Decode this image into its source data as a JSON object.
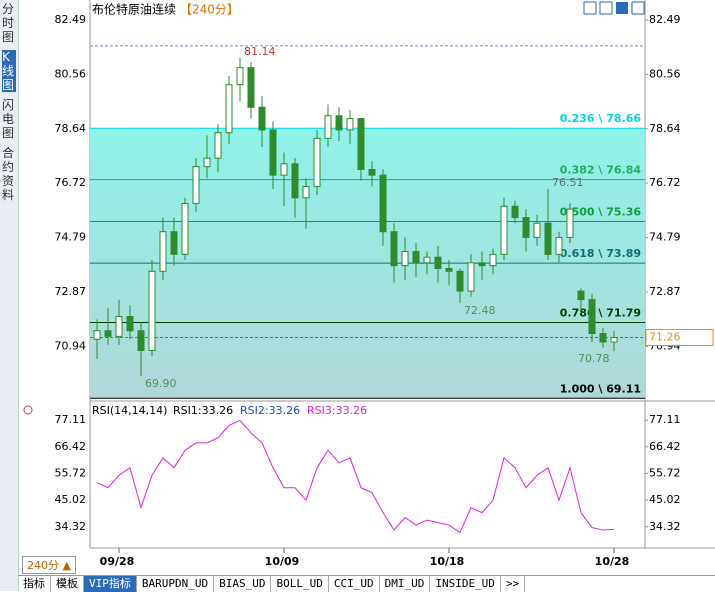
{
  "sidebar_tabs": [
    "分时图",
    "K线图",
    "闪电图",
    "合约资料"
  ],
  "chart_data": {
    "type": "candlestick",
    "title": "布伦特原油连续",
    "period": "【240分】",
    "ylim": [
      69.05,
      82.91
    ],
    "yticks": [
      82.49,
      80.56,
      78.64,
      76.72,
      74.79,
      72.87,
      70.94
    ],
    "categories": [
      null,
      null,
      "09/28",
      null,
      null,
      null,
      null,
      null,
      null,
      null,
      null,
      null,
      null,
      null,
      null,
      null,
      null,
      "10/09",
      null,
      null,
      null,
      null,
      null,
      null,
      null,
      null,
      null,
      null,
      null,
      null,
      null,
      null,
      "10/18",
      null,
      null,
      null,
      null,
      null,
      null,
      null,
      null,
      null,
      null,
      null,
      null,
      null,
      null,
      "10/28"
    ],
    "candles": {
      "open": [
        71.2,
        71.5,
        71.3,
        72.0,
        71.5,
        70.8,
        73.6,
        75.0,
        74.2,
        76.0,
        77.3,
        77.6,
        78.5,
        80.2,
        80.8,
        79.4,
        78.6,
        77.0,
        77.4,
        76.2,
        76.6,
        78.3,
        79.1,
        78.6,
        79.0,
        77.2,
        77.0,
        75.0,
        73.8,
        74.3,
        73.9,
        74.1,
        73.7,
        73.6,
        72.9,
        73.9,
        73.8,
        74.2,
        75.9,
        75.5,
        74.8,
        75.3,
        74.2,
        74.8,
        72.9,
        72.6,
        71.4,
        71.1
      ],
      "high": [
        71.9,
        72.3,
        72.6,
        72.4,
        71.8,
        74.0,
        75.5,
        75.5,
        76.2,
        77.6,
        78.4,
        78.8,
        80.5,
        81.14,
        81.0,
        79.8,
        78.9,
        77.8,
        77.6,
        76.9,
        78.6,
        79.5,
        79.4,
        79.3,
        79.0,
        77.5,
        77.2,
        75.3,
        74.8,
        74.6,
        74.3,
        74.5,
        74.0,
        73.7,
        74.2,
        74.3,
        74.4,
        76.2,
        76.1,
        75.8,
        75.6,
        76.51,
        75.0,
        76.0,
        73.0,
        72.8,
        71.6,
        71.5
      ],
      "low": [
        70.5,
        71.0,
        71.0,
        71.2,
        69.9,
        70.6,
        73.3,
        73.8,
        74.0,
        75.7,
        76.9,
        77.1,
        78.1,
        79.6,
        79.0,
        78.0,
        76.5,
        75.9,
        75.5,
        75.1,
        76.3,
        78.0,
        78.2,
        78.1,
        76.8,
        76.6,
        74.5,
        73.2,
        73.3,
        73.4,
        73.5,
        73.2,
        73.1,
        72.48,
        72.7,
        73.3,
        73.5,
        74.0,
        75.3,
        74.3,
        74.5,
        74.0,
        73.9,
        74.6,
        72.2,
        71.1,
        70.9,
        70.78
      ],
      "close": [
        71.5,
        71.3,
        72.0,
        71.5,
        70.8,
        73.6,
        75.0,
        74.2,
        76.0,
        77.3,
        77.6,
        78.5,
        80.2,
        80.8,
        79.4,
        78.6,
        77.0,
        77.4,
        76.2,
        76.6,
        78.3,
        79.1,
        78.6,
        79.0,
        77.2,
        77.0,
        75.0,
        73.8,
        74.3,
        73.9,
        74.1,
        73.7,
        73.6,
        72.9,
        73.9,
        73.8,
        74.2,
        75.9,
        75.5,
        74.8,
        75.3,
        74.2,
        74.8,
        75.8,
        72.6,
        71.4,
        71.1,
        71.26
      ]
    },
    "up_color": "#2e8b2e",
    "down_color": "#2e8b2e",
    "high_labels": [
      81.14,
      76.51
    ],
    "low_labels": [
      {
        "value": 69.9,
        "label": "69.90"
      },
      72.48,
      70.78
    ],
    "fib_levels": [
      {
        "value": 78.66,
        "label": "0.236 \\ 78.66",
        "color": "#00d8e0"
      },
      {
        "value": 76.84,
        "label": "0.382 \\ 76.84",
        "color": "#20b060"
      },
      {
        "value": 75.36,
        "label": "0.500 \\ 75.36",
        "color": "#10a040"
      },
      {
        "value": 73.89,
        "label": "0.618 \\ 73.89",
        "color": "#107070"
      },
      {
        "value": 71.79,
        "label": "0.786 \\ 71.79",
        "color": "#004000"
      },
      {
        "value": 69.11,
        "label": "1.000 \\ 69.11",
        "color": "#000000"
      }
    ],
    "upper_dashed": 81.57,
    "last_price": 71.26,
    "rsi": {
      "title": "RSI(14,14,14)",
      "ylim": [
        27,
        83.2
      ],
      "yticks": [
        77.11,
        66.42,
        55.72,
        45.02,
        34.32
      ],
      "series": [
        {
          "name": "RSI1:33.26",
          "color": "#000000"
        },
        {
          "name": "RSI2:33.26",
          "color": "#1f4fd0"
        },
        {
          "name": "RSI3:33.26",
          "color": "#e020e0",
          "values": [
            52,
            50,
            55,
            58,
            42,
            55,
            62,
            58,
            65,
            68,
            68,
            70,
            75,
            77,
            72,
            68,
            58,
            50,
            50,
            45,
            58,
            65,
            60,
            62,
            50,
            48,
            40,
            33,
            38,
            35,
            37,
            36,
            35,
            32,
            42,
            40,
            45,
            62,
            58,
            50,
            55,
            58,
            45,
            58,
            40,
            34,
            33,
            33.26
          ]
        }
      ]
    }
  },
  "period_button": "240分 ▲",
  "tabs": [
    "指标",
    "模板",
    "VIP指标",
    "BARUPDN_UD",
    "BIAS_UD",
    "BOLL_UD",
    "CCI_UD",
    "DMI_UD",
    "INSIDE_UD",
    ">>"
  ]
}
